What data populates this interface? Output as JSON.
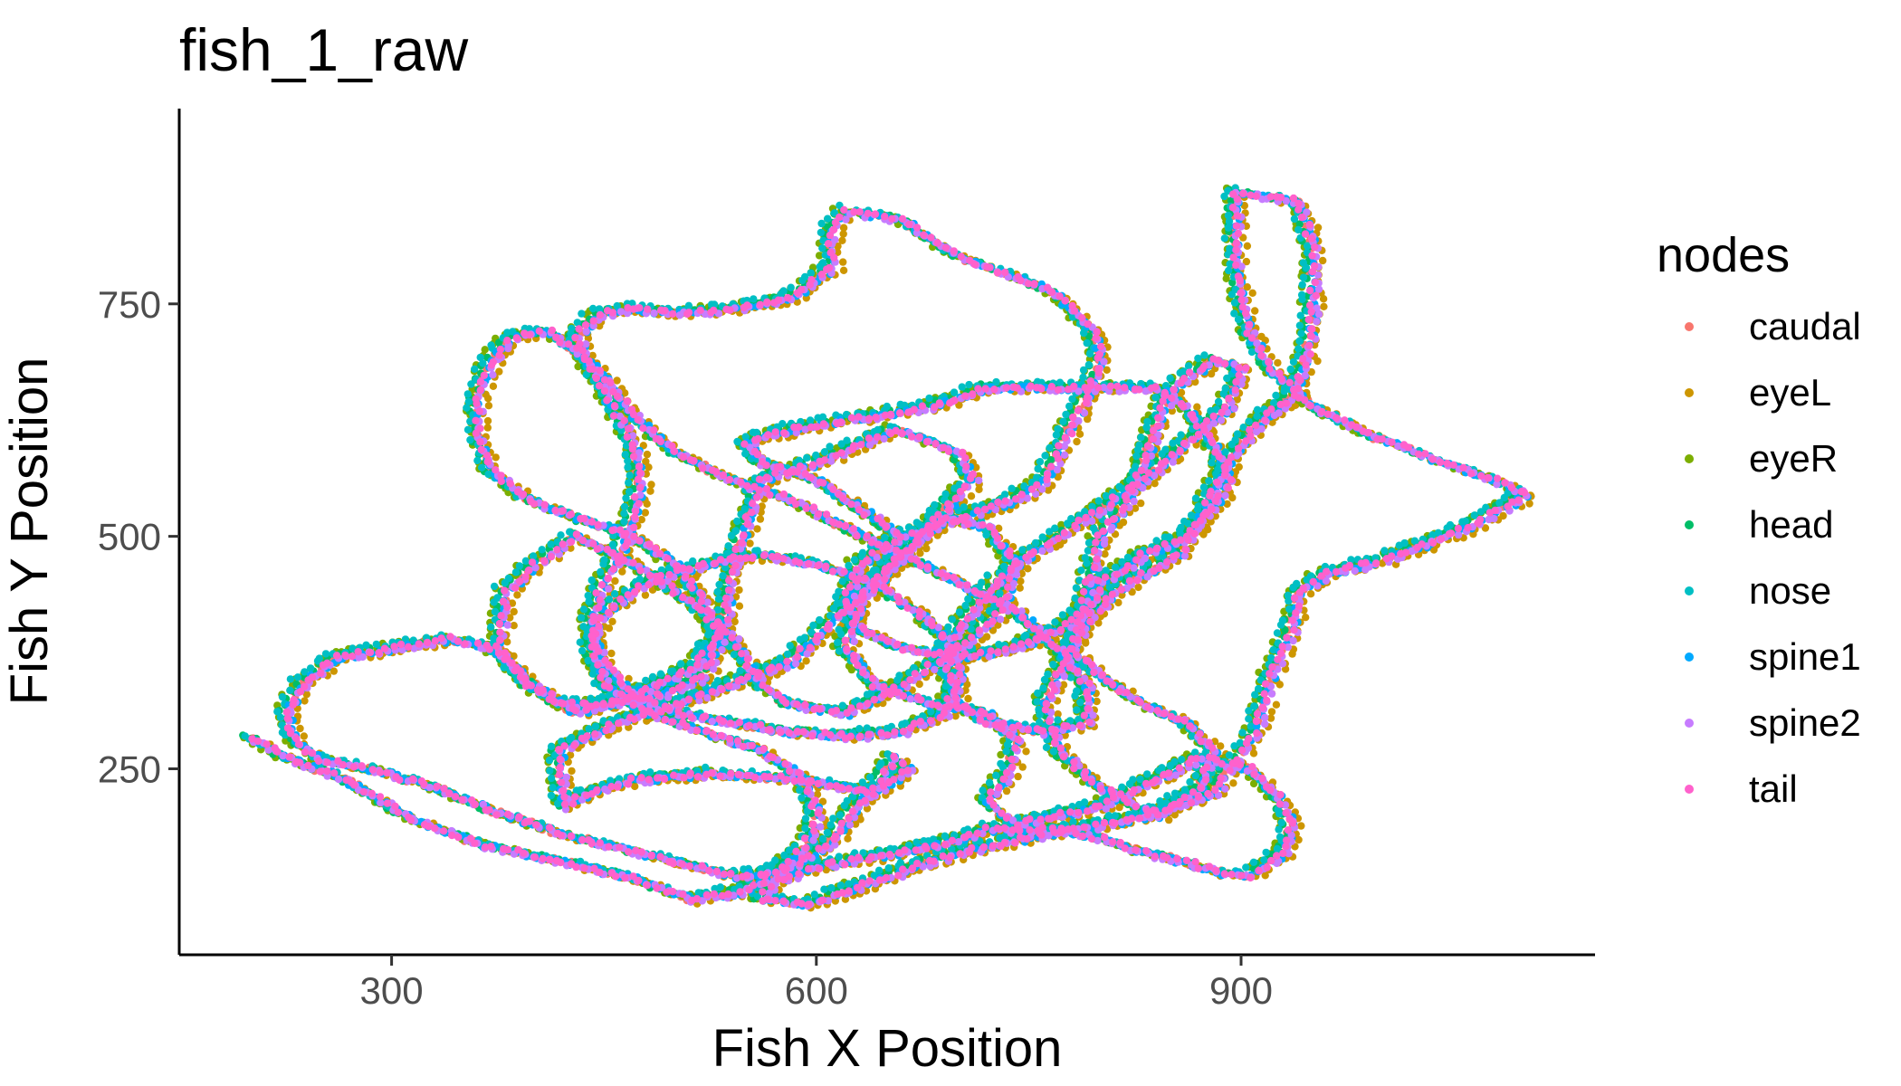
{
  "chart_data": {
    "type": "scatter",
    "title": "fish_1_raw",
    "xlabel": "Fish X Position",
    "ylabel": "Fish Y Position",
    "xlim": [
      150,
      1150
    ],
    "ylim": [
      50,
      960
    ],
    "x_ticks": [
      300,
      600,
      900
    ],
    "y_ticks": [
      250,
      500,
      750
    ],
    "grid": false,
    "legend": {
      "title": "nodes",
      "placement": "right"
    },
    "series": [
      {
        "name": "caudal",
        "color": "#F8766D",
        "offset": [
          0,
          0
        ]
      },
      {
        "name": "eyeL",
        "color": "#CD9600",
        "offset": [
          14,
          -6
        ]
      },
      {
        "name": "eyeR",
        "color": "#7CAE00",
        "offset": [
          -12,
          5
        ]
      },
      {
        "name": "head",
        "color": "#00BE67",
        "offset": [
          -6,
          3
        ]
      },
      {
        "name": "nose",
        "color": "#00BFC4",
        "offset": [
          -10,
          8
        ]
      },
      {
        "name": "spine1",
        "color": "#00A9FF",
        "offset": [
          4,
          -2
        ]
      },
      {
        "name": "spine2",
        "color": "#C77CFF",
        "offset": [
          6,
          -4
        ]
      },
      {
        "name": "tail",
        "color": "#FF61CC",
        "offset": [
          2,
          0
        ]
      }
    ],
    "trajectory": [
      [
        200,
        283
      ],
      [
        225,
        262
      ],
      [
        265,
        240
      ],
      [
        315,
        195
      ],
      [
        365,
        168
      ],
      [
        420,
        150
      ],
      [
        470,
        132
      ],
      [
        510,
        110
      ],
      [
        545,
        118
      ],
      [
        585,
        148
      ],
      [
        610,
        172
      ],
      [
        625,
        205
      ],
      [
        640,
        230
      ],
      [
        655,
        262
      ],
      [
        665,
        250
      ],
      [
        640,
        225
      ],
      [
        590,
        238
      ],
      [
        525,
        245
      ],
      [
        470,
        238
      ],
      [
        440,
        225
      ],
      [
        420,
        210
      ],
      [
        418,
        270
      ],
      [
        460,
        300
      ],
      [
        520,
        330
      ],
      [
        580,
        365
      ],
      [
        625,
        430
      ],
      [
        665,
        490
      ],
      [
        690,
        530
      ],
      [
        710,
        560
      ],
      [
        700,
        590
      ],
      [
        655,
        615
      ],
      [
        600,
        580
      ],
      [
        560,
        560
      ],
      [
        540,
        470
      ],
      [
        535,
        410
      ],
      [
        515,
        360
      ],
      [
        470,
        330
      ],
      [
        430,
        310
      ],
      [
        395,
        340
      ],
      [
        375,
        380
      ],
      [
        380,
        440
      ],
      [
        400,
        470
      ],
      [
        430,
        500
      ],
      [
        470,
        470
      ],
      [
        510,
        430
      ],
      [
        540,
        390
      ],
      [
        560,
        340
      ],
      [
        580,
        320
      ],
      [
        620,
        310
      ],
      [
        660,
        340
      ],
      [
        700,
        380
      ],
      [
        730,
        420
      ],
      [
        740,
        470
      ],
      [
        720,
        510
      ],
      [
        690,
        520
      ],
      [
        660,
        480
      ],
      [
        630,
        430
      ],
      [
        620,
        380
      ],
      [
        640,
        340
      ],
      [
        680,
        320
      ],
      [
        720,
        310
      ],
      [
        740,
        280
      ],
      [
        735,
        245
      ],
      [
        720,
        215
      ],
      [
        740,
        190
      ],
      [
        800,
        210
      ],
      [
        840,
        240
      ],
      [
        870,
        262
      ],
      [
        905,
        250
      ],
      [
        925,
        220
      ],
      [
        935,
        190
      ],
      [
        930,
        160
      ],
      [
        905,
        135
      ],
      [
        880,
        140
      ],
      [
        860,
        150
      ],
      [
        830,
        160
      ],
      [
        800,
        175
      ],
      [
        770,
        185
      ],
      [
        720,
        185
      ],
      [
        690,
        170
      ],
      [
        640,
        155
      ],
      [
        600,
        145
      ],
      [
        570,
        130
      ],
      [
        560,
        110
      ],
      [
        595,
        105
      ],
      [
        650,
        135
      ],
      [
        700,
        160
      ],
      [
        760,
        180
      ],
      [
        800,
        190
      ],
      [
        835,
        200
      ],
      [
        880,
        225
      ],
      [
        910,
        290
      ],
      [
        920,
        350
      ],
      [
        935,
        400
      ],
      [
        940,
        440
      ],
      [
        960,
        460
      ],
      [
        1000,
        475
      ],
      [
        1060,
        510
      ],
      [
        1100,
        545
      ],
      [
        1080,
        560
      ],
      [
        1040,
        580
      ],
      [
        990,
        610
      ],
      [
        950,
        640
      ],
      [
        920,
        680
      ],
      [
        905,
        720
      ],
      [
        895,
        790
      ],
      [
        895,
        870
      ],
      [
        940,
        860
      ],
      [
        950,
        810
      ],
      [
        950,
        740
      ],
      [
        945,
        690
      ],
      [
        935,
        650
      ],
      [
        910,
        620
      ],
      [
        890,
        580
      ],
      [
        870,
        520
      ],
      [
        855,
        480
      ],
      [
        830,
        460
      ],
      [
        810,
        440
      ],
      [
        790,
        410
      ],
      [
        780,
        380
      ],
      [
        800,
        350
      ],
      [
        830,
        320
      ],
      [
        860,
        300
      ],
      [
        880,
        270
      ],
      [
        870,
        230
      ],
      [
        840,
        200
      ],
      [
        800,
        230
      ],
      [
        770,
        270
      ],
      [
        760,
        320
      ],
      [
        780,
        380
      ],
      [
        790,
        440
      ],
      [
        800,
        500
      ],
      [
        820,
        540
      ],
      [
        830,
        580
      ],
      [
        840,
        620
      ],
      [
        850,
        660
      ],
      [
        880,
        690
      ],
      [
        900,
        680
      ],
      [
        890,
        640
      ],
      [
        860,
        600
      ],
      [
        830,
        560
      ],
      [
        800,
        530
      ],
      [
        770,
        500
      ],
      [
        740,
        470
      ],
      [
        720,
        440
      ],
      [
        700,
        400
      ],
      [
        690,
        360
      ],
      [
        700,
        320
      ],
      [
        720,
        300
      ],
      [
        760,
        290
      ],
      [
        790,
        300
      ],
      [
        790,
        340
      ],
      [
        770,
        380
      ],
      [
        740,
        420
      ],
      [
        700,
        450
      ],
      [
        660,
        480
      ],
      [
        620,
        510
      ],
      [
        580,
        540
      ],
      [
        540,
        560
      ],
      [
        500,
        590
      ],
      [
        470,
        630
      ],
      [
        450,
        670
      ],
      [
        430,
        700
      ],
      [
        410,
        720
      ],
      [
        385,
        715
      ],
      [
        370,
        690
      ],
      [
        360,
        650
      ],
      [
        360,
        610
      ],
      [
        370,
        570
      ],
      [
        395,
        540
      ],
      [
        430,
        520
      ],
      [
        470,
        500
      ],
      [
        500,
        470
      ],
      [
        520,
        430
      ],
      [
        530,
        390
      ],
      [
        520,
        350
      ],
      [
        490,
        330
      ],
      [
        450,
        320
      ],
      [
        420,
        320
      ],
      [
        395,
        345
      ],
      [
        370,
        380
      ],
      [
        340,
        390
      ],
      [
        300,
        380
      ],
      [
        260,
        370
      ],
      [
        235,
        340
      ],
      [
        225,
        310
      ],
      [
        230,
        280
      ],
      [
        250,
        260
      ],
      [
        290,
        248
      ],
      [
        330,
        230
      ],
      [
        370,
        205
      ],
      [
        420,
        180
      ],
      [
        460,
        165
      ],
      [
        500,
        150
      ],
      [
        540,
        135
      ],
      [
        570,
        140
      ],
      [
        590,
        165
      ],
      [
        600,
        200
      ],
      [
        590,
        240
      ],
      [
        560,
        270
      ],
      [
        520,
        290
      ],
      [
        480,
        310
      ],
      [
        450,
        340
      ],
      [
        440,
        380
      ],
      [
        450,
        420
      ],
      [
        480,
        450
      ],
      [
        520,
        470
      ],
      [
        560,
        480
      ],
      [
        600,
        470
      ],
      [
        640,
        450
      ],
      [
        670,
        420
      ],
      [
        690,
        390
      ],
      [
        700,
        350
      ],
      [
        690,
        310
      ],
      [
        660,
        290
      ],
      [
        620,
        285
      ],
      [
        580,
        290
      ],
      [
        540,
        300
      ],
      [
        500,
        310
      ],
      [
        470,
        330
      ],
      [
        450,
        360
      ],
      [
        440,
        400
      ],
      [
        445,
        440
      ],
      [
        460,
        480
      ],
      [
        470,
        520
      ],
      [
        475,
        560
      ],
      [
        470,
        600
      ],
      [
        455,
        640
      ],
      [
        440,
        680
      ],
      [
        430,
        715
      ],
      [
        445,
        740
      ],
      [
        470,
        745
      ],
      [
        500,
        740
      ],
      [
        540,
        745
      ],
      [
        580,
        755
      ],
      [
        610,
        790
      ],
      [
        610,
        830
      ],
      [
        620,
        850
      ],
      [
        660,
        840
      ],
      [
        700,
        800
      ],
      [
        740,
        780
      ],
      [
        770,
        760
      ],
      [
        795,
        720
      ],
      [
        800,
        690
      ],
      [
        790,
        650
      ],
      [
        780,
        620
      ],
      [
        770,
        590
      ],
      [
        760,
        560
      ],
      [
        740,
        540
      ],
      [
        700,
        520
      ],
      [
        660,
        500
      ],
      [
        630,
        470
      ],
      [
        620,
        430
      ],
      [
        630,
        400
      ],
      [
        660,
        380
      ],
      [
        700,
        370
      ],
      [
        740,
        380
      ],
      [
        770,
        400
      ],
      [
        790,
        420
      ],
      [
        800,
        450
      ],
      [
        830,
        480
      ],
      [
        860,
        500
      ],
      [
        880,
        530
      ],
      [
        890,
        560
      ],
      [
        880,
        600
      ],
      [
        860,
        640
      ],
      [
        840,
        660
      ],
      [
        800,
        660
      ],
      [
        760,
        660
      ],
      [
        720,
        660
      ],
      [
        680,
        640
      ],
      [
        640,
        630
      ],
      [
        600,
        620
      ],
      [
        565,
        610
      ],
      [
        550,
        600
      ],
      [
        560,
        580
      ],
      [
        580,
        570
      ],
      [
        600,
        560
      ],
      [
        620,
        540
      ],
      [
        640,
        520
      ],
      [
        660,
        500
      ]
    ]
  }
}
